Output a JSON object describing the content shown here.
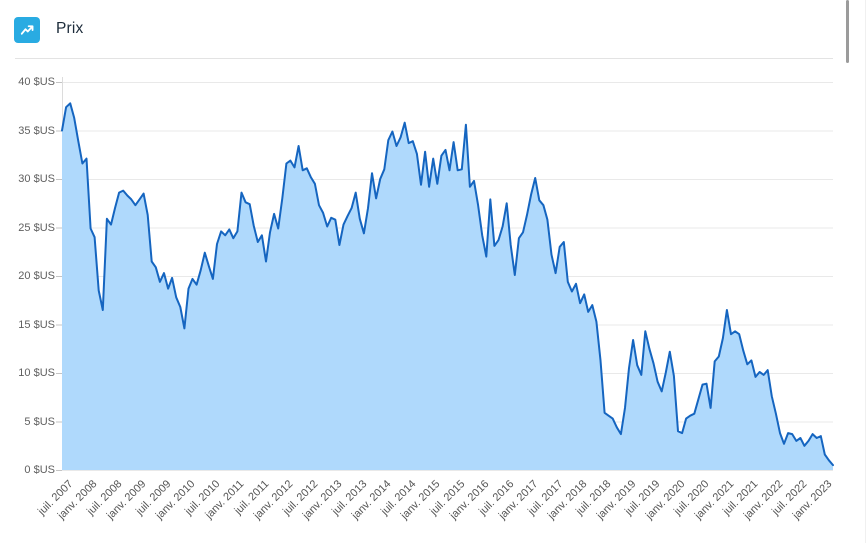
{
  "header": {
    "title": "Prix",
    "icon": "trend-up-icon"
  },
  "scrollbar": {
    "visible": true
  },
  "chart_data": {
    "type": "area",
    "title": "Prix",
    "unit": "$US",
    "frequency": "monthly",
    "x_start_month": "juil. 2007",
    "x_end_month": "avr. 2023",
    "ylim": [
      0,
      40
    ],
    "grid": true,
    "legend_position": "none",
    "line_color": "#1565c0",
    "fill_color": "#afd9fc",
    "icon_color": "#29abe2",
    "y_ticks": [
      {
        "value": 0,
        "label": "0 $US"
      },
      {
        "value": 5,
        "label": "5 $US"
      },
      {
        "value": 10,
        "label": "10 $US"
      },
      {
        "value": 15,
        "label": "15 $US"
      },
      {
        "value": 20,
        "label": "20 $US"
      },
      {
        "value": 25,
        "label": "25 $US"
      },
      {
        "value": 30,
        "label": "30 $US"
      },
      {
        "value": 35,
        "label": "35 $US"
      },
      {
        "value": 40,
        "label": "40 $US"
      }
    ],
    "x_ticks": [
      "juil. 2007",
      "janv. 2008",
      "juil. 2008",
      "janv. 2009",
      "juil. 2009",
      "janv. 2010",
      "juil. 2010",
      "janv. 2011",
      "juil. 2011",
      "janv. 2012",
      "juil. 2012",
      "janv. 2013",
      "juil. 2013",
      "janv. 2014",
      "juil. 2014",
      "janv. 2015",
      "juil. 2015",
      "janv. 2016",
      "juil. 2016",
      "janv. 2017",
      "juil. 2017",
      "janv. 2018",
      "juil. 2018",
      "janv. 2019",
      "juil. 2019",
      "janv. 2020",
      "juil. 2020",
      "janv. 2021",
      "juil. 2021",
      "janv. 2022",
      "juil. 2022",
      "janv. 2023"
    ],
    "values": [
      35.0,
      37.4,
      37.8,
      36.3,
      33.9,
      31.6,
      32.1,
      24.9,
      24.0,
      18.5,
      16.5,
      25.9,
      25.3,
      27.0,
      28.6,
      28.8,
      28.3,
      27.9,
      27.3,
      27.9,
      28.5,
      26.3,
      21.5,
      20.9,
      19.4,
      20.3,
      18.7,
      19.8,
      17.8,
      16.8,
      14.6,
      18.7,
      19.7,
      19.1,
      20.6,
      22.4,
      21.0,
      19.7,
      23.3,
      24.6,
      24.2,
      24.8,
      23.9,
      24.6,
      28.6,
      27.6,
      27.4,
      25.2,
      23.5,
      24.2,
      21.5,
      24.5,
      26.4,
      24.9,
      28.0,
      31.6,
      31.9,
      31.2,
      33.4,
      30.9,
      31.1,
      30.2,
      29.5,
      27.3,
      26.5,
      25.1,
      26.0,
      25.8,
      23.2,
      25.3,
      26.2,
      27.0,
      28.6,
      25.9,
      24.4,
      27.0,
      30.6,
      28.0,
      30.0,
      31.0,
      34.0,
      34.9,
      33.4,
      34.3,
      35.8,
      33.7,
      33.9,
      32.6,
      29.4,
      32.8,
      29.2,
      32.1,
      29.5,
      32.4,
      33.0,
      30.9,
      33.8,
      30.9,
      31.0,
      35.6,
      29.2,
      29.8,
      27.3,
      24.2,
      22.0,
      27.9,
      23.1,
      23.7,
      25.1,
      27.5,
      23.2,
      20.1,
      23.9,
      24.5,
      26.3,
      28.4,
      30.1,
      27.8,
      27.3,
      25.8,
      22.2,
      20.3,
      23.0,
      23.5,
      19.4,
      18.4,
      19.2,
      17.2,
      18.1,
      16.3,
      17.0,
      15.3,
      11.3,
      5.9,
      5.6,
      5.3,
      4.4,
      3.7,
      6.4,
      10.5,
      13.4,
      10.8,
      9.8,
      14.3,
      12.5,
      11.0,
      9.1,
      8.1,
      10.0,
      12.2,
      9.7,
      4.0,
      3.8,
      5.3,
      5.6,
      5.8,
      7.3,
      8.8,
      8.9,
      6.4,
      11.2,
      11.7,
      13.6,
      16.5,
      14.0,
      14.3,
      14.0,
      12.3,
      10.9,
      11.3,
      9.6,
      10.1,
      9.8,
      10.3,
      7.6,
      5.8,
      3.8,
      2.7,
      3.8,
      3.7,
      3.0,
      3.3,
      2.5,
      3.0,
      3.7,
      3.3,
      3.5,
      1.6,
      1.0,
      0.5
    ]
  }
}
